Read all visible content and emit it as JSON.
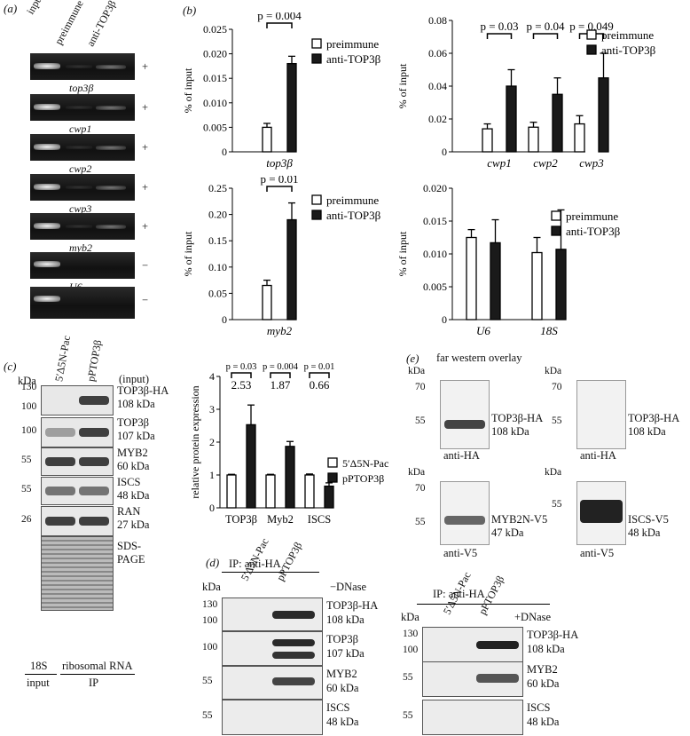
{
  "panels": {
    "a": "(a)",
    "b": "(b)",
    "c": "(c)",
    "d": "(d)",
    "e": "(e)"
  },
  "a": {
    "lanes": [
      "input",
      "preimmune",
      "anti-TOP3β"
    ],
    "genes": [
      "top3β",
      "cwp1",
      "cwp2",
      "cwp3",
      "myb2",
      "U6",
      ""
    ],
    "signs": [
      "+",
      "+",
      "+",
      "+",
      "+",
      "−",
      "−"
    ],
    "bottom": {
      "s18": "18S",
      "ribo": "ribosomal RNA",
      "input": "input",
      "ip": "IP"
    }
  },
  "chart_data": [
    {
      "type": "bar",
      "id": "b1",
      "ylabel": "% of input",
      "categories": [
        "top3β"
      ],
      "ylim": [
        0,
        0.025
      ],
      "yticks": [
        "0",
        "0.005",
        "0.010",
        "0.015",
        "0.020",
        "0.025"
      ],
      "series": [
        {
          "name": "preimmune",
          "values": [
            0.005
          ],
          "err": [
            0.0008
          ]
        },
        {
          "name": "anti-TOP3β",
          "values": [
            0.018
          ],
          "err": [
            0.0015
          ]
        }
      ],
      "annotations": [
        "p = 0.004"
      ],
      "legend": "top-right"
    },
    {
      "type": "bar",
      "id": "b2",
      "ylabel": "% of input",
      "categories": [
        "cwp1",
        "cwp2",
        "cwp3"
      ],
      "ylim": [
        0,
        0.08
      ],
      "yticks": [
        "0",
        "0.02",
        "0.04",
        "0.06",
        "0.08"
      ],
      "series": [
        {
          "name": "preimmune",
          "values": [
            0.014,
            0.015,
            0.017
          ],
          "err": [
            0.003,
            0.003,
            0.005
          ]
        },
        {
          "name": "anti-TOP3β",
          "values": [
            0.04,
            0.035,
            0.045
          ],
          "err": [
            0.01,
            0.01,
            0.015
          ]
        }
      ],
      "annotations": [
        "p = 0.03",
        "p = 0.04",
        "p = 0.049"
      ],
      "legend": "top-right"
    },
    {
      "type": "bar",
      "id": "b3",
      "ylabel": "% of input",
      "categories": [
        "myb2"
      ],
      "ylim": [
        0,
        0.25
      ],
      "yticks": [
        "0",
        "0.05",
        "0.10",
        "0.15",
        "0.20",
        "0.25"
      ],
      "series": [
        {
          "name": "preimmune",
          "values": [
            0.065
          ],
          "err": [
            0.01
          ]
        },
        {
          "name": "anti-TOP3β",
          "values": [
            0.19
          ],
          "err": [
            0.032
          ]
        }
      ],
      "annotations": [
        "p = 0.01"
      ],
      "legend": "top-right"
    },
    {
      "type": "bar",
      "id": "b4",
      "ylabel": "% of input",
      "categories": [
        "U6",
        "18S"
      ],
      "ylim": [
        0,
        0.02
      ],
      "yticks": [
        "0",
        "0.005",
        "0.010",
        "0.015",
        "0.020"
      ],
      "series": [
        {
          "name": "preimmune",
          "values": [
            0.0125,
            0.0102
          ],
          "err": [
            0.0012,
            0.0023
          ]
        },
        {
          "name": "anti-TOP3β",
          "values": [
            0.0117,
            0.0107
          ],
          "err": [
            0.0035,
            0.006
          ]
        }
      ],
      "annotations": [],
      "legend": "top-right"
    },
    {
      "type": "bar",
      "id": "c",
      "ylabel": "relative protein expression",
      "categories": [
        "TOP3β",
        "Myb2",
        "ISCS"
      ],
      "ylim": [
        0,
        4
      ],
      "yticks": [
        "0",
        "1",
        "2",
        "3",
        "4"
      ],
      "series": [
        {
          "name": "5′Δ5N-Pac",
          "values": [
            1,
            1,
            1
          ],
          "err": [
            0.02,
            0.02,
            0.03
          ]
        },
        {
          "name": "pPTOP3β",
          "values": [
            2.53,
            1.87,
            0.66
          ],
          "err": [
            0.6,
            0.15,
            0.1
          ]
        }
      ],
      "annotations": [
        "p = 0.03",
        "p = 0.004",
        "p = 0.01"
      ],
      "ratios": [
        "2.53",
        "1.87",
        "0.66"
      ],
      "legend": "right"
    }
  ],
  "c": {
    "kda": "kDa",
    "lanes": [
      "5′Δ5N-Pac",
      "pPTOP3β"
    ],
    "input": "(input)",
    "rows": [
      {
        "marker": "130",
        "marker2": "100",
        "name": "TOP3β-HA",
        "size": "108 kDa"
      },
      {
        "marker": "100",
        "name": "TOP3β",
        "size": "107 kDa"
      },
      {
        "marker": "55",
        "name": "MYB2",
        "size": "60 kDa"
      },
      {
        "marker": "55",
        "name": "ISCS",
        "size": "48 kDa"
      },
      {
        "marker": "26",
        "name": "RAN",
        "size": "27 kDa"
      },
      {
        "marker": "",
        "name": "SDS-",
        "size": "PAGE"
      }
    ]
  },
  "d": {
    "ip": "IP: anti-HA",
    "kda": "kDa",
    "lanes": [
      "5′Δ5N-Pac",
      "pPTOP3β"
    ],
    "dnase_minus": "−DNase",
    "dnase_plus": "+DNase",
    "left": [
      {
        "m1": "130",
        "m2": "100",
        "name": "TOP3β-HA",
        "size": "108 kDa"
      },
      {
        "m1": "100",
        "m2": "",
        "name": "TOP3β",
        "size": "107 kDa"
      },
      {
        "m1": "55",
        "m2": "",
        "name": "MYB2",
        "size": "60 kDa"
      },
      {
        "m1": "55",
        "m2": "",
        "name": "ISCS",
        "size": "48 kDa"
      }
    ],
    "right": [
      {
        "m1": "130",
        "m2": "100",
        "name": "TOP3β-HA",
        "size": "108 kDa"
      },
      {
        "m1": "55",
        "m2": "",
        "name": "MYB2",
        "size": "60 kDa"
      },
      {
        "m1": "55",
        "m2": "",
        "name": "ISCS",
        "size": "48 kDa"
      }
    ]
  },
  "e": {
    "title": "far western overlay",
    "kda": "kDa",
    "blots": [
      {
        "m1": "70",
        "m2": "55",
        "name": "TOP3β-HA",
        "size": "108 kDa",
        "ab": "anti-HA"
      },
      {
        "m1": "70",
        "m2": "55",
        "name": "TOP3β-HA",
        "size": "108 kDa",
        "ab": "anti-HA"
      },
      {
        "m1": "70",
        "m2": "55",
        "name": "MYB2N-V5",
        "size": "47 kDa",
        "ab": "anti-V5"
      },
      {
        "m1": "55",
        "m2": "",
        "name": "ISCS-V5",
        "size": "48 kDa",
        "ab": "anti-V5"
      }
    ]
  }
}
